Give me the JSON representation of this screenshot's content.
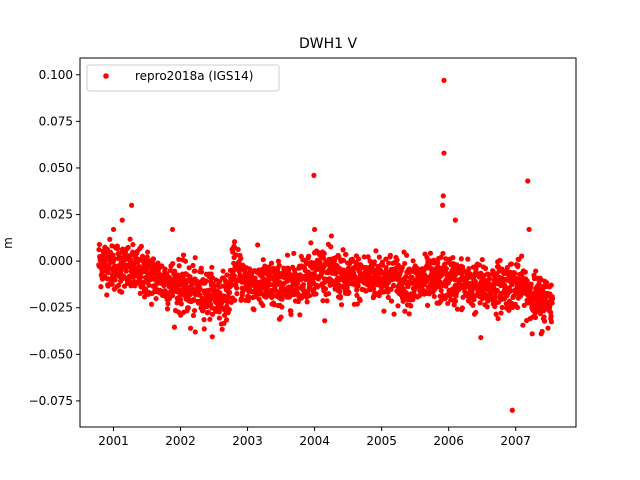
{
  "chart_data": {
    "type": "scatter",
    "title": "DWH1 V",
    "xlabel": "",
    "ylabel": "m",
    "xlim": [
      2000.5,
      2007.9
    ],
    "ylim": [
      -0.089,
      0.109
    ],
    "xticks": [
      2001,
      2002,
      2003,
      2004,
      2005,
      2006,
      2007
    ],
    "xtick_labels": [
      "2001",
      "2002",
      "2003",
      "2004",
      "2005",
      "2006",
      "2007"
    ],
    "yticks": [
      0.1,
      0.075,
      0.05,
      0.025,
      0.0,
      -0.025,
      -0.05,
      -0.075
    ],
    "ytick_labels": [
      "0.100",
      "0.075",
      "0.050",
      "0.025",
      "0.000",
      "−0.025",
      "−0.050",
      "−0.075"
    ],
    "grid": false,
    "legend": {
      "position": "top-left",
      "entries": [
        "repro2018a (IGS14)"
      ]
    },
    "series": [
      {
        "name": "repro2018a (IGS14)",
        "color": "#ff0000",
        "x_start": 2000.78,
        "x_end": 2007.55,
        "trend_profile": [
          [
            2000.78,
            0.0
          ],
          [
            2001.0,
            -0.002
          ],
          [
            2001.4,
            -0.006
          ],
          [
            2001.7,
            -0.01
          ],
          [
            2002.0,
            -0.014
          ],
          [
            2002.4,
            -0.018
          ],
          [
            2002.7,
            -0.02
          ],
          [
            2002.8,
            -0.004
          ],
          [
            2003.0,
            -0.012
          ],
          [
            2003.5,
            -0.014
          ],
          [
            2003.8,
            -0.01
          ],
          [
            2004.0,
            -0.004
          ],
          [
            2004.5,
            -0.01
          ],
          [
            2005.0,
            -0.008
          ],
          [
            2005.5,
            -0.012
          ],
          [
            2006.0,
            -0.01
          ],
          [
            2006.4,
            -0.014
          ],
          [
            2006.7,
            -0.014
          ],
          [
            2007.0,
            -0.012
          ],
          [
            2007.3,
            -0.02
          ],
          [
            2007.55,
            -0.022
          ]
        ],
        "scatter_sd": 0.0065,
        "n_points": 2100,
        "outliers": [
          [
            2005.93,
            0.097
          ],
          [
            2005.93,
            0.058
          ],
          [
            2005.92,
            0.035
          ],
          [
            2005.91,
            0.03
          ],
          [
            2007.18,
            0.043
          ],
          [
            2003.99,
            0.046
          ],
          [
            2006.1,
            0.022
          ],
          [
            2001.13,
            0.022
          ],
          [
            2001.27,
            0.03
          ],
          [
            2006.95,
            -0.08
          ],
          [
            2006.48,
            -0.041
          ],
          [
            2002.15,
            -0.036
          ],
          [
            2002.22,
            -0.038
          ],
          [
            2007.38,
            -0.039
          ],
          [
            2004.0,
            0.017
          ],
          [
            2001.88,
            0.017
          ],
          [
            2007.2,
            0.017
          ],
          [
            2001.0,
            0.017
          ],
          [
            2003.5,
            -0.03
          ]
        ]
      }
    ]
  }
}
